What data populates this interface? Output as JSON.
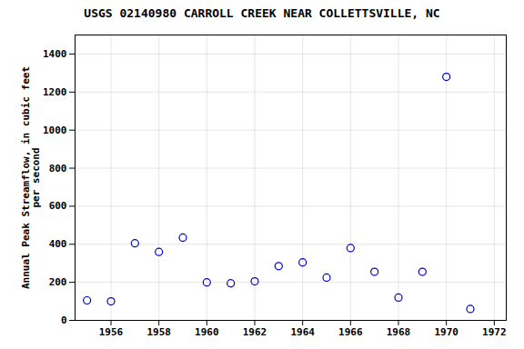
{
  "chart_data": {
    "type": "scatter",
    "title": "USGS 02140980 CARROLL CREEK NEAR COLLETTSVILLE, NC",
    "ylabel": "Annual Peak Streamflow, in cubic feet\nper second",
    "x": [
      1955,
      1956,
      1957,
      1958,
      1959,
      1960,
      1961,
      1962,
      1963,
      1964,
      1965,
      1966,
      1967,
      1968,
      1969,
      1970,
      1971
    ],
    "values": [
      105,
      100,
      405,
      360,
      435,
      200,
      195,
      205,
      285,
      305,
      225,
      380,
      255,
      120,
      255,
      1280,
      60
    ],
    "color": "#0000CC",
    "xlim": [
      1954.5,
      1972.5
    ],
    "ylim": [
      0,
      1500
    ],
    "xticks": [
      1956,
      1958,
      1960,
      1962,
      1964,
      1966,
      1968,
      1970,
      1972
    ],
    "yticks": [
      0,
      200,
      400,
      600,
      800,
      1000,
      1200,
      1400
    ],
    "grid": true
  }
}
